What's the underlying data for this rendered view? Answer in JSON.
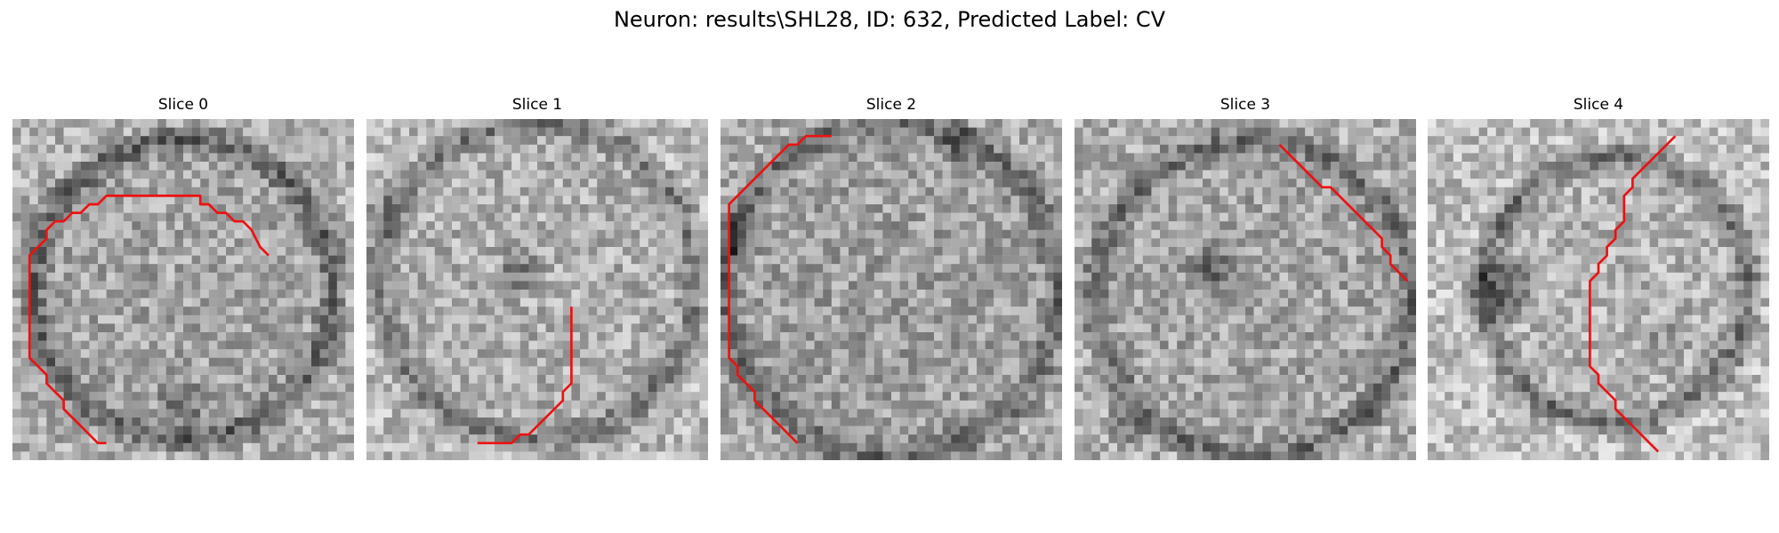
{
  "figure": {
    "title": "Neuron: results\\SHL28, ID: 632, Predicted Label: CV"
  },
  "panels": [
    {
      "title": "Slice 0",
      "contour": [
        [
          30,
          16
        ],
        [
          29,
          15
        ],
        [
          28,
          13
        ],
        [
          27,
          12
        ],
        [
          26,
          12
        ],
        [
          25,
          11
        ],
        [
          24,
          11
        ],
        [
          23,
          10
        ],
        [
          22,
          10
        ],
        [
          22,
          9
        ],
        [
          21,
          9
        ],
        [
          20,
          9
        ],
        [
          19,
          9
        ],
        [
          18,
          9
        ],
        [
          17,
          9
        ],
        [
          16,
          9
        ],
        [
          15,
          9
        ],
        [
          14,
          9
        ],
        [
          13,
          9
        ],
        [
          12,
          9
        ],
        [
          11,
          9
        ],
        [
          10,
          10
        ],
        [
          9,
          10
        ],
        [
          8,
          11
        ],
        [
          7,
          11
        ],
        [
          6,
          12
        ],
        [
          5,
          12
        ],
        [
          4,
          13
        ],
        [
          4,
          14
        ],
        [
          3,
          15
        ],
        [
          2,
          16
        ],
        [
          2,
          17
        ],
        [
          2,
          18
        ],
        [
          2,
          19
        ],
        [
          2,
          20
        ],
        [
          2,
          21
        ],
        [
          2,
          22
        ],
        [
          2,
          23
        ],
        [
          2,
          24
        ],
        [
          2,
          25
        ],
        [
          2,
          26
        ],
        [
          2,
          27
        ],
        [
          2,
          28
        ],
        [
          3,
          29
        ],
        [
          4,
          30
        ],
        [
          4,
          31
        ],
        [
          5,
          32
        ],
        [
          6,
          33
        ],
        [
          6,
          34
        ],
        [
          7,
          35
        ],
        [
          8,
          36
        ],
        [
          9,
          37
        ],
        [
          10,
          38
        ],
        [
          11,
          38
        ]
      ]
    },
    {
      "title": "Slice 1",
      "contour": [
        [
          24,
          22
        ],
        [
          24,
          23
        ],
        [
          24,
          24
        ],
        [
          24,
          25
        ],
        [
          24,
          26
        ],
        [
          24,
          27
        ],
        [
          24,
          28
        ],
        [
          24,
          29
        ],
        [
          24,
          30
        ],
        [
          24,
          31
        ],
        [
          23,
          32
        ],
        [
          23,
          33
        ],
        [
          22,
          34
        ],
        [
          21,
          35
        ],
        [
          20,
          36
        ],
        [
          19,
          37
        ],
        [
          18,
          37
        ],
        [
          17,
          38
        ],
        [
          16,
          38
        ],
        [
          15,
          38
        ],
        [
          14,
          38
        ],
        [
          13,
          38
        ]
      ]
    },
    {
      "title": "Slice 2",
      "contour": [
        [
          13,
          2
        ],
        [
          12,
          2
        ],
        [
          11,
          2
        ],
        [
          10,
          2
        ],
        [
          9,
          3
        ],
        [
          8,
          3
        ],
        [
          7,
          4
        ],
        [
          6,
          5
        ],
        [
          5,
          6
        ],
        [
          4,
          7
        ],
        [
          3,
          8
        ],
        [
          2,
          9
        ],
        [
          1,
          10
        ],
        [
          1,
          11
        ],
        [
          1,
          12
        ],
        [
          1,
          13
        ],
        [
          1,
          14
        ],
        [
          1,
          15
        ],
        [
          1,
          16
        ],
        [
          1,
          17
        ],
        [
          1,
          18
        ],
        [
          1,
          19
        ],
        [
          1,
          20
        ],
        [
          1,
          21
        ],
        [
          1,
          22
        ],
        [
          1,
          23
        ],
        [
          1,
          24
        ],
        [
          1,
          25
        ],
        [
          1,
          26
        ],
        [
          1,
          27
        ],
        [
          1,
          28
        ],
        [
          2,
          29
        ],
        [
          2,
          30
        ],
        [
          3,
          31
        ],
        [
          4,
          32
        ],
        [
          4,
          33
        ],
        [
          5,
          34
        ],
        [
          6,
          35
        ],
        [
          7,
          36
        ],
        [
          8,
          37
        ],
        [
          9,
          38
        ]
      ]
    },
    {
      "title": "Slice 3",
      "contour": [
        [
          24,
          3
        ],
        [
          25,
          4
        ],
        [
          26,
          5
        ],
        [
          27,
          6
        ],
        [
          28,
          7
        ],
        [
          29,
          8
        ],
        [
          30,
          8
        ],
        [
          31,
          9
        ],
        [
          32,
          10
        ],
        [
          33,
          11
        ],
        [
          34,
          12
        ],
        [
          35,
          13
        ],
        [
          36,
          14
        ],
        [
          36,
          15
        ],
        [
          37,
          16
        ],
        [
          37,
          17
        ],
        [
          38,
          18
        ],
        [
          39,
          19
        ]
      ]
    },
    {
      "title": "Slice 4",
      "contour": [
        [
          29,
          2
        ],
        [
          28,
          3
        ],
        [
          27,
          4
        ],
        [
          26,
          5
        ],
        [
          25,
          6
        ],
        [
          24,
          7
        ],
        [
          24,
          8
        ],
        [
          23,
          9
        ],
        [
          23,
          10
        ],
        [
          23,
          11
        ],
        [
          23,
          12
        ],
        [
          22,
          13
        ],
        [
          22,
          14
        ],
        [
          21,
          15
        ],
        [
          21,
          16
        ],
        [
          20,
          17
        ],
        [
          20,
          18
        ],
        [
          19,
          19
        ],
        [
          19,
          20
        ],
        [
          19,
          21
        ],
        [
          19,
          22
        ],
        [
          19,
          23
        ],
        [
          19,
          24
        ],
        [
          19,
          25
        ],
        [
          19,
          26
        ],
        [
          19,
          27
        ],
        [
          19,
          28
        ],
        [
          19,
          29
        ],
        [
          20,
          30
        ],
        [
          20,
          31
        ],
        [
          21,
          32
        ],
        [
          22,
          33
        ],
        [
          22,
          34
        ],
        [
          23,
          35
        ],
        [
          24,
          36
        ],
        [
          25,
          37
        ],
        [
          26,
          38
        ],
        [
          27,
          39
        ]
      ]
    }
  ],
  "style": {
    "contour_color": "#ee1111"
  }
}
